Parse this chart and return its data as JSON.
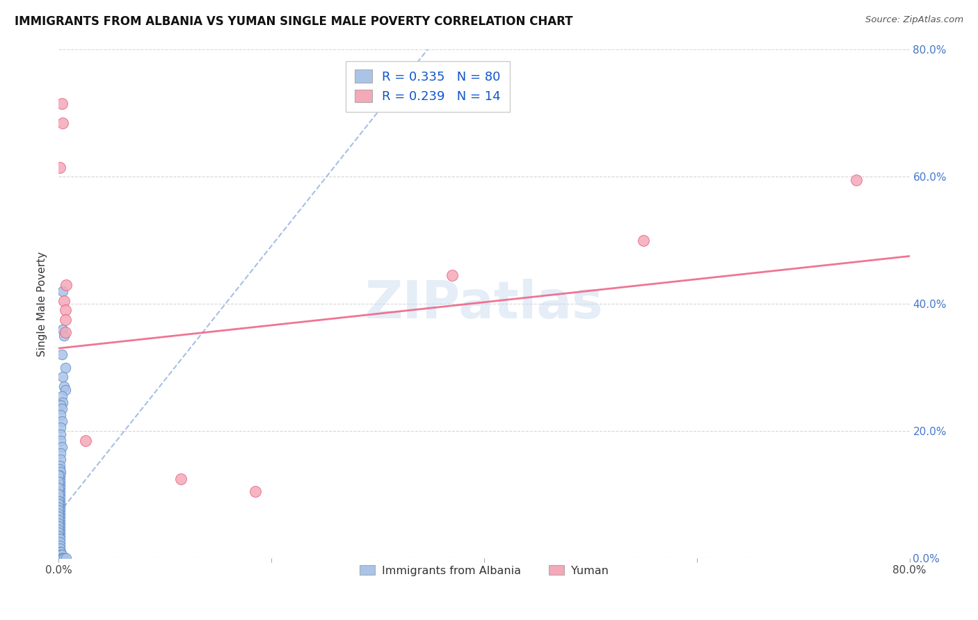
{
  "title": "IMMIGRANTS FROM ALBANIA VS YUMAN SINGLE MALE POVERTY CORRELATION CHART",
  "source": "Source: ZipAtlas.com",
  "ylabel": "Single Male Poverty",
  "legend_label1": "Immigrants from Albania",
  "legend_label2": "Yuman",
  "r1": 0.335,
  "n1": 80,
  "r2": 0.239,
  "n2": 14,
  "watermark": "ZIPatlas",
  "blue_color": "#aac4e8",
  "blue_edge": "#5580bb",
  "pink_color": "#f5a8b8",
  "pink_edge": "#e05070",
  "blue_line_color": "#88aadd",
  "pink_line_color": "#ee6688",
  "blue_scatter": [
    [
      0.004,
      0.42
    ],
    [
      0.004,
      0.36
    ],
    [
      0.005,
      0.35
    ],
    [
      0.003,
      0.32
    ],
    [
      0.006,
      0.3
    ],
    [
      0.004,
      0.285
    ],
    [
      0.005,
      0.27
    ],
    [
      0.006,
      0.265
    ],
    [
      0.003,
      0.255
    ],
    [
      0.004,
      0.245
    ],
    [
      0.002,
      0.24
    ],
    [
      0.003,
      0.235
    ],
    [
      0.002,
      0.225
    ],
    [
      0.003,
      0.215
    ],
    [
      0.002,
      0.205
    ],
    [
      0.002,
      0.195
    ],
    [
      0.002,
      0.185
    ],
    [
      0.003,
      0.175
    ],
    [
      0.002,
      0.165
    ],
    [
      0.002,
      0.155
    ],
    [
      0.001,
      0.145
    ],
    [
      0.001,
      0.14
    ],
    [
      0.002,
      0.135
    ],
    [
      0.001,
      0.13
    ],
    [
      0.001,
      0.125
    ],
    [
      0.001,
      0.12
    ],
    [
      0.001,
      0.115
    ],
    [
      0.001,
      0.11
    ],
    [
      0.001,
      0.105
    ],
    [
      0.001,
      0.1
    ],
    [
      0.001,
      0.095
    ],
    [
      0.001,
      0.09
    ],
    [
      0.001,
      0.085
    ],
    [
      0.001,
      0.08
    ],
    [
      0.001,
      0.075
    ],
    [
      0.001,
      0.07
    ],
    [
      0.001,
      0.065
    ],
    [
      0.001,
      0.06
    ],
    [
      0.001,
      0.055
    ],
    [
      0.001,
      0.05
    ],
    [
      0.001,
      0.045
    ],
    [
      0.001,
      0.04
    ],
    [
      0.001,
      0.035
    ],
    [
      0.0,
      0.13
    ],
    [
      0.0,
      0.12
    ],
    [
      0.0,
      0.11
    ],
    [
      0.0,
      0.1
    ],
    [
      0.0,
      0.09
    ],
    [
      0.0,
      0.085
    ],
    [
      0.0,
      0.08
    ],
    [
      0.0,
      0.075
    ],
    [
      0.0,
      0.07
    ],
    [
      0.0,
      0.065
    ],
    [
      0.0,
      0.06
    ],
    [
      0.0,
      0.055
    ],
    [
      0.0,
      0.05
    ],
    [
      0.0,
      0.045
    ],
    [
      0.0,
      0.04
    ],
    [
      0.0,
      0.035
    ],
    [
      0.0,
      0.03
    ],
    [
      0.0,
      0.025
    ],
    [
      0.0,
      0.02
    ],
    [
      0.0,
      0.015
    ],
    [
      0.0,
      0.01
    ],
    [
      0.0,
      0.005
    ],
    [
      0.0,
      0.002
    ],
    [
      0.0,
      0.0
    ],
    [
      0.001,
      0.03
    ],
    [
      0.001,
      0.025
    ],
    [
      0.001,
      0.02
    ],
    [
      0.001,
      0.015
    ],
    [
      0.001,
      0.01
    ],
    [
      0.001,
      0.005
    ],
    [
      0.002,
      0.01
    ],
    [
      0.002,
      0.005
    ],
    [
      0.002,
      0.0
    ],
    [
      0.003,
      0.005
    ],
    [
      0.003,
      0.0
    ],
    [
      0.004,
      0.0
    ],
    [
      0.005,
      0.0
    ],
    [
      0.007,
      0.0
    ]
  ],
  "pink_scatter": [
    [
      0.003,
      0.715
    ],
    [
      0.004,
      0.685
    ],
    [
      0.001,
      0.615
    ],
    [
      0.007,
      0.43
    ],
    [
      0.005,
      0.405
    ],
    [
      0.006,
      0.39
    ],
    [
      0.006,
      0.375
    ],
    [
      0.006,
      0.355
    ],
    [
      0.37,
      0.445
    ],
    [
      0.55,
      0.5
    ],
    [
      0.75,
      0.595
    ],
    [
      0.025,
      0.185
    ],
    [
      0.115,
      0.125
    ],
    [
      0.185,
      0.105
    ]
  ],
  "xlim": [
    0.0,
    0.8
  ],
  "ylim": [
    0.0,
    0.8
  ],
  "xticks": [
    0.0,
    0.2,
    0.4,
    0.6,
    0.8
  ],
  "yticks": [
    0.0,
    0.2,
    0.4,
    0.6,
    0.8
  ],
  "xtick_labels_show": [
    "0.0%",
    "",
    "",
    "",
    "80.0%"
  ],
  "ytick_labels_right": [
    "0.0%",
    "20.0%",
    "40.0%",
    "60.0%",
    "80.0%"
  ],
  "blue_trendline": [
    [
      0.0,
      0.07
    ],
    [
      0.38,
      0.87
    ]
  ],
  "pink_trendline": [
    [
      0.0,
      0.33
    ],
    [
      0.8,
      0.475
    ]
  ]
}
